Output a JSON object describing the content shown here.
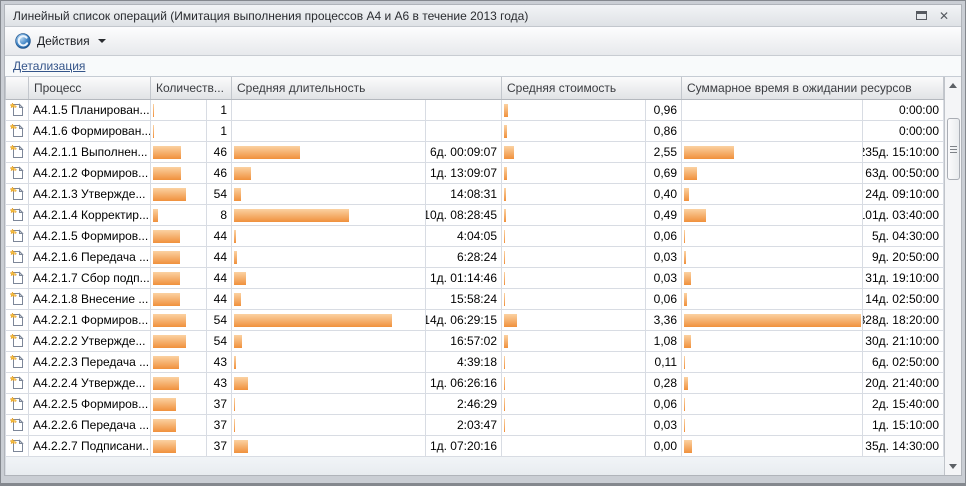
{
  "window": {
    "title": "Линейный список операций (Имитация выполнения процессов А4 и А6 в течение 2013 года)"
  },
  "toolbar": {
    "actions_label": "Действия"
  },
  "linkbar": {
    "detail_label": "Детализация"
  },
  "colors": {
    "bar_top": "#FBD2A2",
    "bar_bottom": "#F0913C",
    "link": "#35558A",
    "accent_blue": "#2E6DB4"
  },
  "icons": {
    "actions": "actions-sphere-icon",
    "row": "process-document-icon"
  },
  "table": {
    "columns": [
      "Процесс",
      "Количеств...",
      "Средняя длительность",
      "Средняя стоимость",
      "Суммарное время в ожидании ресурсов"
    ],
    "rows": [
      {
        "name": "А4.1.5 Планирован...",
        "count": 1,
        "duration": "",
        "duration_days": 0,
        "cost": "0,96",
        "cost_value": 0.96,
        "wait": "0:00:00",
        "wait_days": 0
      },
      {
        "name": "А4.1.6 Формирован...",
        "count": 1,
        "duration": "",
        "duration_days": 0,
        "cost": "0,86",
        "cost_value": 0.86,
        "wait": "0:00:00",
        "wait_days": 0
      },
      {
        "name": "А4.2.1.1 Выполнен...",
        "count": 46,
        "duration": "6д. 00:09:07",
        "duration_days": 6.006,
        "cost": "2,55",
        "cost_value": 2.55,
        "wait": "235д. 15:10:00",
        "wait_days": 235.632
      },
      {
        "name": "А4.2.1.2 Формиров...",
        "count": 46,
        "duration": "1д. 13:09:07",
        "duration_days": 1.548,
        "cost": "0,69",
        "cost_value": 0.69,
        "wait": "63д. 00:50:00",
        "wait_days": 63.035
      },
      {
        "name": "А4.2.1.3 Утвержде...",
        "count": 54,
        "duration": "14:08:31",
        "duration_days": 0.589,
        "cost": "0,40",
        "cost_value": 0.4,
        "wait": "24д. 09:10:00",
        "wait_days": 24.382
      },
      {
        "name": "А4.2.1.4 Корректир...",
        "count": 8,
        "duration": "10д. 08:28:45",
        "duration_days": 10.353,
        "cost": "0,49",
        "cost_value": 0.49,
        "wait": "101д. 03:40:00",
        "wait_days": 101.153
      },
      {
        "name": "А4.2.1.5 Формиров...",
        "count": 44,
        "duration": "4:04:05",
        "duration_days": 0.169,
        "cost": "0,06",
        "cost_value": 0.06,
        "wait": "5д. 04:30:00",
        "wait_days": 5.188
      },
      {
        "name": "А4.2.1.6 Передача ...",
        "count": 44,
        "duration": "6:28:24",
        "duration_days": 0.27,
        "cost": "0,03",
        "cost_value": 0.03,
        "wait": "9д. 20:50:00",
        "wait_days": 9.868
      },
      {
        "name": "А4.2.1.7 Сбор подп...",
        "count": 44,
        "duration": "1д. 01:14:46",
        "duration_days": 1.052,
        "cost": "0,03",
        "cost_value": 0.03,
        "wait": "31д. 19:10:00",
        "wait_days": 31.799
      },
      {
        "name": "А4.2.1.8 Внесение ...",
        "count": 44,
        "duration": "15:58:24",
        "duration_days": 0.666,
        "cost": "0,06",
        "cost_value": 0.06,
        "wait": "14д. 02:50:00",
        "wait_days": 14.118
      },
      {
        "name": "А4.2.2.1 Формиров...",
        "count": 54,
        "duration": "14д. 06:29:15",
        "duration_days": 14.27,
        "cost": "3,36",
        "cost_value": 3.36,
        "wait": "828д. 18:20:00",
        "wait_days": 828.764
      },
      {
        "name": "А4.2.2.2 Утвержде...",
        "count": 54,
        "duration": "16:57:02",
        "duration_days": 0.706,
        "cost": "1,08",
        "cost_value": 1.08,
        "wait": "30д. 21:10:00",
        "wait_days": 30.882
      },
      {
        "name": "А4.2.2.3 Передача ...",
        "count": 43,
        "duration": "4:39:18",
        "duration_days": 0.194,
        "cost": "0,11",
        "cost_value": 0.11,
        "wait": "6д. 02:50:00",
        "wait_days": 6.118
      },
      {
        "name": "А4.2.2.4 Утвержде...",
        "count": 43,
        "duration": "1д. 06:26:16",
        "duration_days": 1.268,
        "cost": "0,28",
        "cost_value": 0.28,
        "wait": "20д. 21:40:00",
        "wait_days": 20.903
      },
      {
        "name": "А4.2.2.5 Формиров...",
        "count": 37,
        "duration": "2:46:29",
        "duration_days": 0.116,
        "cost": "0,06",
        "cost_value": 0.06,
        "wait": "2д. 15:40:00",
        "wait_days": 2.653
      },
      {
        "name": "А4.2.2.6 Передача ...",
        "count": 37,
        "duration": "2:03:47",
        "duration_days": 0.086,
        "cost": "0,03",
        "cost_value": 0.03,
        "wait": "1д. 15:10:00",
        "wait_days": 1.632
      },
      {
        "name": "А4.2.2.7 Подписани...",
        "count": 37,
        "duration": "1д. 07:20:16",
        "duration_days": 1.306,
        "cost": "0,00",
        "cost_value": 0.0,
        "wait": "35д. 14:30:00",
        "wait_days": 35.604
      }
    ]
  }
}
